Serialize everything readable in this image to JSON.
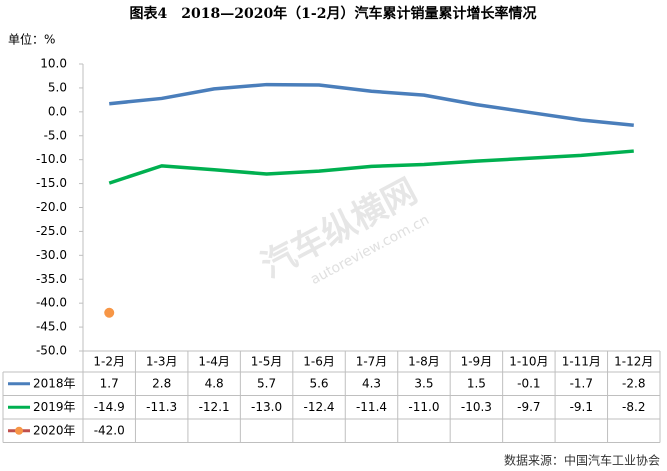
{
  "chart_data": {
    "type": "line",
    "title": "图表4　2018—2020年（1-2月）汽车累计销量累计增长率情况",
    "unit_label": "单位：%",
    "source": "数据来源：中国汽车工业协会",
    "watermark": "汽车纵横网",
    "watermark_url": "autoreview.com.cn",
    "categories": [
      "1-2月",
      "1-3月",
      "1-4月",
      "1-5月",
      "1-6月",
      "1-7月",
      "1-8月",
      "1-9月",
      "1-10月",
      "1-11月",
      "1-12月"
    ],
    "series": [
      {
        "name": "2018年",
        "color": "#4a7ebb",
        "marker": false,
        "values": [
          1.7,
          2.8,
          4.8,
          5.7,
          5.6,
          4.3,
          3.5,
          1.5,
          -0.1,
          -1.7,
          -2.8
        ],
        "value_labels": [
          "1.7",
          "2.8",
          "4.8",
          "5.7",
          "5.6",
          "4.3",
          "3.5",
          "1.5",
          "-0.1",
          "-1.7",
          "-2.8"
        ]
      },
      {
        "name": "2019年",
        "color": "#00b050",
        "marker": false,
        "values": [
          -14.9,
          -11.3,
          -12.1,
          -13.0,
          -12.4,
          -11.4,
          -11.0,
          -10.3,
          -9.7,
          -9.1,
          -8.2
        ],
        "value_labels": [
          "-14.9",
          "-11.3",
          "-12.1",
          "-13.0",
          "-12.4",
          "-11.4",
          "-11.0",
          "-10.3",
          "-9.7",
          "-9.1",
          "-8.2"
        ]
      },
      {
        "name": "2020年",
        "color": "#f79646",
        "marker": true,
        "values": [
          -42.0,
          null,
          null,
          null,
          null,
          null,
          null,
          null,
          null,
          null,
          null
        ],
        "value_labels": [
          "-42.0",
          null,
          null,
          null,
          null,
          null,
          null,
          null,
          null,
          null,
          null
        ]
      }
    ],
    "ylim": [
      -50,
      10
    ],
    "yticks": [
      {
        "value": 10,
        "label": "10.0"
      },
      {
        "value": 5,
        "label": "5.0"
      },
      {
        "value": 0,
        "label": "0.0"
      },
      {
        "value": -5,
        "label": "-5.0"
      },
      {
        "value": -10,
        "label": "-10.0"
      },
      {
        "value": -15,
        "label": "-15.0"
      },
      {
        "value": -20,
        "label": "-20.0"
      },
      {
        "value": -25,
        "label": "-25.0"
      },
      {
        "value": -30,
        "label": "-30.0"
      },
      {
        "value": -35,
        "label": "-35.0"
      },
      {
        "value": -40,
        "label": "-40.0"
      },
      {
        "value": -45,
        "label": "-45.0"
      },
      {
        "value": -50,
        "label": "-50.0"
      }
    ],
    "grid": false
  }
}
